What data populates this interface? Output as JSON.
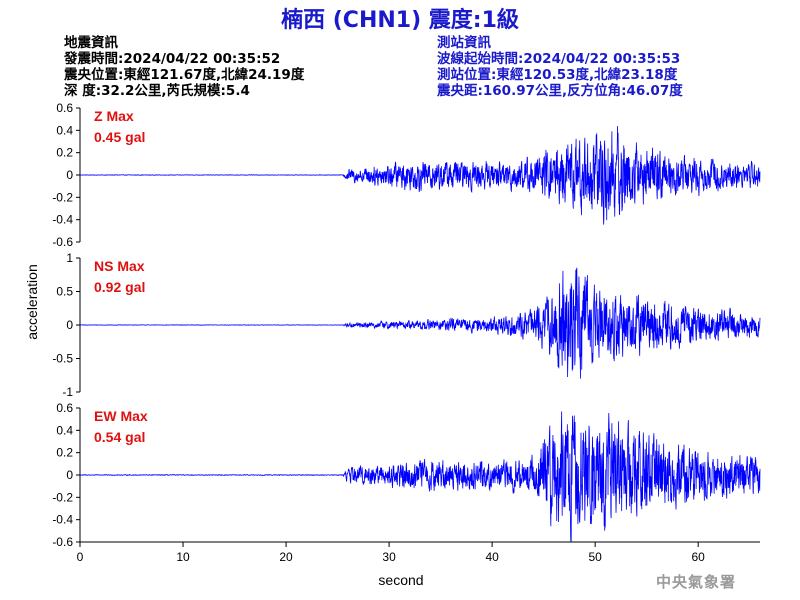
{
  "title": "楠西 (CHN1) 震度:1級",
  "earthquake_info": {
    "heading": "地震資訊",
    "origin_time": "發震時間:2024/04/22 00:35:52",
    "epicenter": "震央位置:東經121.67度,北緯24.19度",
    "depth_magnitude": "深 度:32.2公里,芮氏規模:5.4"
  },
  "station_info": {
    "heading": "測站資訊",
    "wave_start": "波線起始時間:2024/04/22 00:35:53",
    "location": "測站位置:東經120.53度,北緯23.18度",
    "distance_azimuth": "震央距:160.97公里,反方位角:46.07度"
  },
  "watermark": "中央氣象署",
  "chart_data": {
    "type": "line",
    "xlabel": "second",
    "ylabel": "acceleration",
    "xlim": [
      0,
      66
    ],
    "xticks": [
      0,
      10,
      20,
      30,
      40,
      50,
      60
    ],
    "line_color": "#0000ff",
    "panels": [
      {
        "name": "Z",
        "max_label": "Z Max",
        "max_value": "0.45 gal",
        "ylim": [
          -0.6,
          0.6
        ],
        "yticks": [
          "0.6",
          "0.4",
          "0.2",
          "0",
          "-0.2",
          "-0.4",
          "-0.6"
        ],
        "envelope": [
          [
            0,
            0.002
          ],
          [
            25.5,
            0.002
          ],
          [
            26,
            0.05
          ],
          [
            28,
            0.07
          ],
          [
            32,
            0.12
          ],
          [
            36,
            0.12
          ],
          [
            40,
            0.1
          ],
          [
            44,
            0.14
          ],
          [
            46,
            0.22
          ],
          [
            48,
            0.28
          ],
          [
            50,
            0.32
          ],
          [
            51.2,
            0.42
          ],
          [
            53,
            0.3
          ],
          [
            55,
            0.22
          ],
          [
            58,
            0.16
          ],
          [
            62,
            0.12
          ],
          [
            66,
            0.1
          ]
        ]
      },
      {
        "name": "NS",
        "max_label": "NS Max",
        "max_value": "0.92 gal",
        "ylim": [
          -1,
          1
        ],
        "yticks": [
          "1",
          "0.5",
          "0",
          "-0.5",
          "-1"
        ],
        "envelope": [
          [
            0,
            0.003
          ],
          [
            25.5,
            0.003
          ],
          [
            26,
            0.03
          ],
          [
            30,
            0.05
          ],
          [
            36,
            0.08
          ],
          [
            40,
            0.1
          ],
          [
            44,
            0.2
          ],
          [
            46,
            0.45
          ],
          [
            47.5,
            0.8
          ],
          [
            49,
            0.6
          ],
          [
            51,
            0.45
          ],
          [
            54,
            0.4
          ],
          [
            58,
            0.28
          ],
          [
            62,
            0.2
          ],
          [
            66,
            0.15
          ]
        ]
      },
      {
        "name": "EW",
        "max_label": "EW Max",
        "max_value": "0.54 gal",
        "ylim": [
          -0.6,
          0.6
        ],
        "yticks": [
          "0.6",
          "0.4",
          "0.2",
          "0",
          "-0.2",
          "-0.4",
          "-0.6"
        ],
        "envelope": [
          [
            0,
            0.003
          ],
          [
            25.5,
            0.003
          ],
          [
            26,
            0.06
          ],
          [
            30,
            0.1
          ],
          [
            34,
            0.12
          ],
          [
            38,
            0.12
          ],
          [
            42,
            0.12
          ],
          [
            44,
            0.15
          ],
          [
            46,
            0.38
          ],
          [
            47.5,
            0.5
          ],
          [
            49,
            0.4
          ],
          [
            51,
            0.45
          ],
          [
            53,
            0.38
          ],
          [
            56,
            0.3
          ],
          [
            60,
            0.2
          ],
          [
            66,
            0.15
          ]
        ]
      }
    ]
  }
}
